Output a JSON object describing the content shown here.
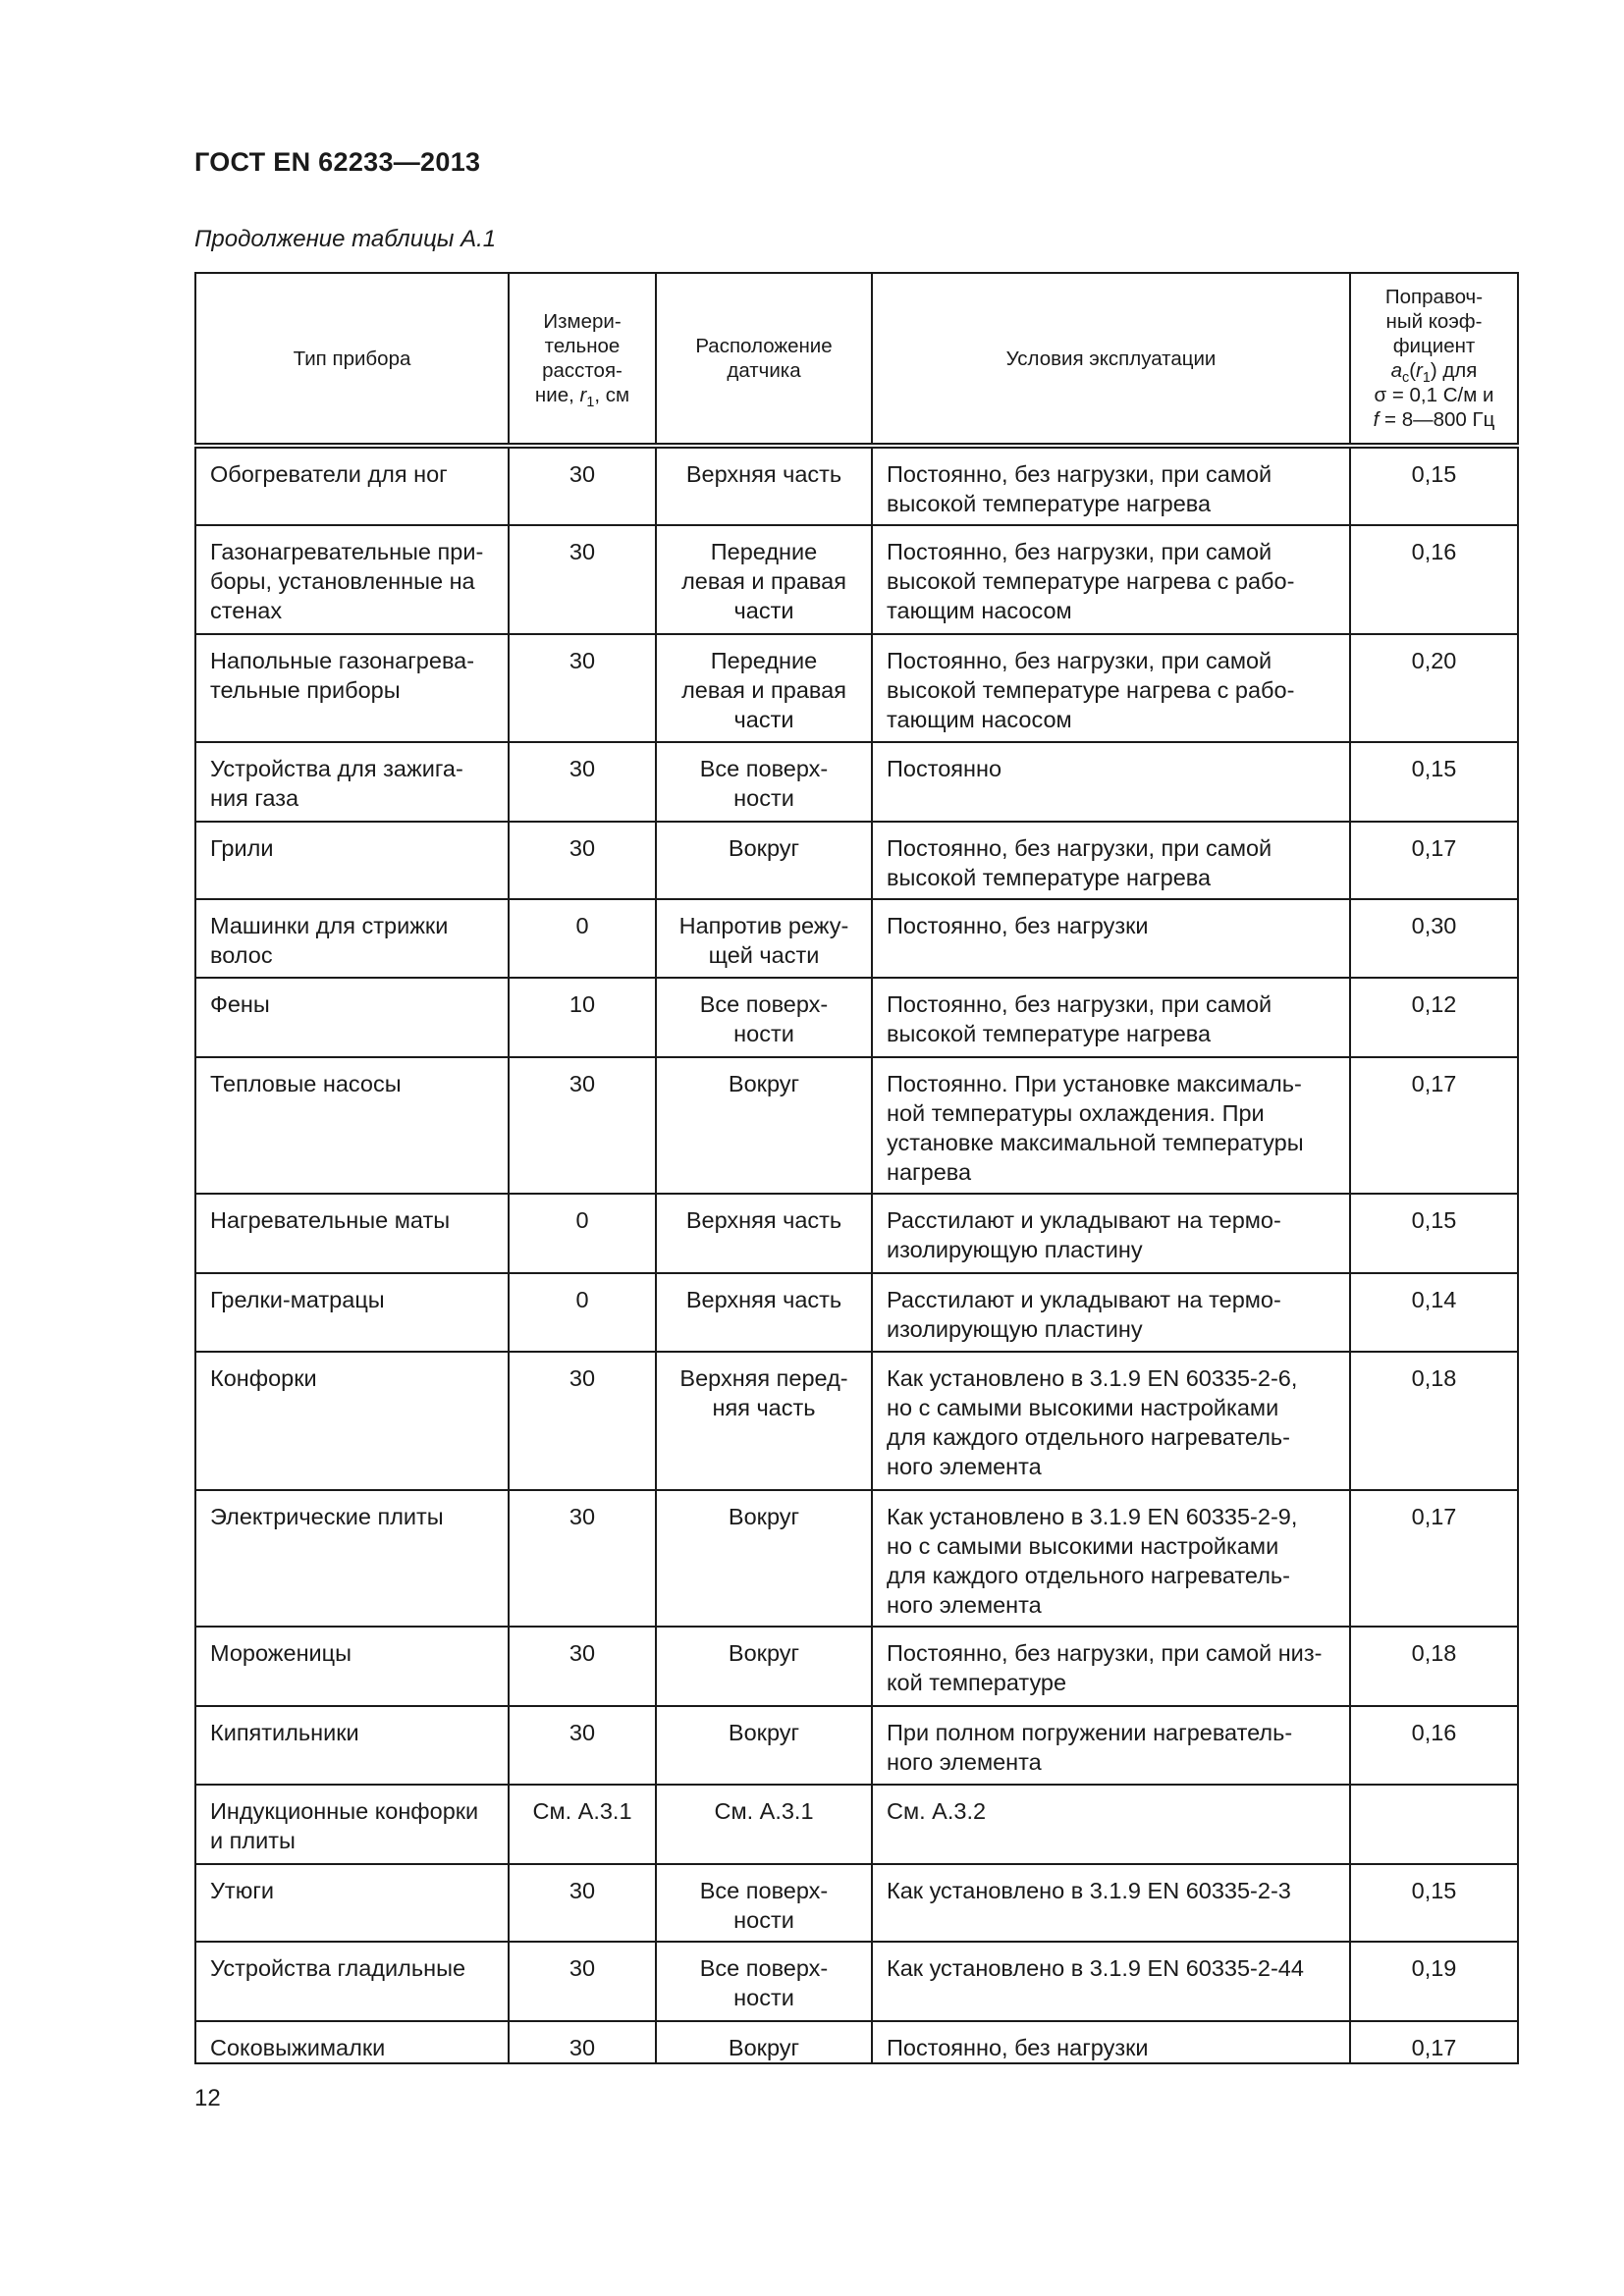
{
  "header": {
    "title": "ГОСТ EN 62233—2013"
  },
  "caption": "Продолжение таблицы А.1",
  "table": {
    "columns": {
      "device_type": "Тип прибора",
      "distance": {
        "pre": "Измери-\nтельное\nрасстоя-\nние, ",
        "var": "r",
        "sub": "1",
        "post": ", см"
      },
      "sensor_location": "Расположение\nдатчика",
      "conditions": "Условия эксплуатации",
      "coefficient": {
        "pre": "Поправоч-\nный коэф-\nфициент\n",
        "var": "a",
        "sub": "c",
        "paren_open": "(",
        "var2": "r",
        "sub2": "1",
        "post": ") для\nσ = 0,1 С/м и\n",
        "fvar": "f",
        "fpost": " = 8—800 Гц"
      }
    },
    "rows": [
      {
        "device": "Обогреватели для ног",
        "distance": "30",
        "location": "Верхняя часть",
        "conditions": "Постоянно, без нагрузки, при самой\nвысокой температуре нагрева",
        "coef": "0,15"
      },
      {
        "device": "Газонагревательные при-\nборы, установленные на\nстенах",
        "distance": "30",
        "location": "Передние\nлевая и правая\nчасти",
        "conditions": "Постоянно, без нагрузки, при самой\nвысокой температуре нагрева с рабо-\nтающим насосом",
        "coef": "0,16"
      },
      {
        "device": "Напольные газонагрева-\nтельные приборы",
        "distance": "30",
        "location": "Передние\nлевая и правая\nчасти",
        "conditions": "Постоянно, без нагрузки, при самой\nвысокой температуре нагрева с рабо-\nтающим насосом",
        "coef": "0,20"
      },
      {
        "device": "Устройства для зажига-\nния газа",
        "distance": "30",
        "location": "Все поверх-\nности",
        "conditions": "Постоянно",
        "coef": "0,15"
      },
      {
        "device": "Грили",
        "distance": "30",
        "location": "Вокруг",
        "conditions": "Постоянно, без нагрузки, при самой\nвысокой температуре нагрева",
        "coef": "0,17"
      },
      {
        "device": "Машинки для стрижки\nволос",
        "distance": "0",
        "location": "Напротив режу-\nщей части",
        "conditions": "Постоянно, без нагрузки",
        "coef": "0,30"
      },
      {
        "device": "Фены",
        "distance": "10",
        "location": "Все поверх-\nности",
        "conditions": "Постоянно, без нагрузки, при самой\nвысокой температуре нагрева",
        "coef": "0,12"
      },
      {
        "device": "Тепловые насосы",
        "distance": "30",
        "location": "Вокруг",
        "conditions": "Постоянно. При установке максималь-\nной температуры охлаждения. При\nустановке максимальной температуры\nнагрева",
        "coef": "0,17"
      },
      {
        "device": "Нагревательные маты",
        "distance": "0",
        "location": "Верхняя часть",
        "conditions": "Расстилают и укладывают на термо-\nизолирующую пластину",
        "coef": "0,15"
      },
      {
        "device": "Грелки-матрацы",
        "distance": "0",
        "location": "Верхняя часть",
        "conditions": "Расстилают и укладывают на термо-\nизолирующую пластину",
        "coef": "0,14"
      },
      {
        "device": "Конфорки",
        "distance": "30",
        "location": "Верхняя перед-\nняя часть",
        "conditions": "Как установлено в 3.1.9 EN 60335-2-6,\nно с самыми высокими настройками\nдля каждого отдельного нагреватель-\nного элемента",
        "coef": "0,18"
      },
      {
        "device": "Электрические плиты",
        "distance": "30",
        "location": "Вокруг",
        "conditions": "Как установлено в 3.1.9 EN 60335-2-9,\nно с  самыми высокими настройками\nдля каждого отдельного нагреватель-\nного элемента",
        "coef": "0,17"
      },
      {
        "device": "Мороженицы",
        "distance": "30",
        "location": "Вокруг",
        "conditions": "Постоянно, без нагрузки, при самой низ-\nкой температуре",
        "coef": "0,18"
      },
      {
        "device": "Кипятильники",
        "distance": "30",
        "location": "Вокруг",
        "conditions": "При полном погружении нагреватель-\nного элемента",
        "coef": "0,16"
      },
      {
        "device": "Индукционные конфорки\nи плиты",
        "distance": "См. А.3.1",
        "location": "См. А.3.1",
        "conditions": "См. А.3.2",
        "coef": ""
      },
      {
        "device": "Утюги",
        "distance": "30",
        "location": "Все поверх-\nности",
        "conditions": "Как установлено в 3.1.9 EN 60335-2-3",
        "coef": "0,15"
      },
      {
        "device": "Устройства гладильные",
        "distance": "30",
        "location": "Все поверх-\nности",
        "conditions": "Как установлено в 3.1.9 EN 60335-2-44",
        "coef": "0,19"
      },
      {
        "device": "Соковыжималки",
        "distance": "30",
        "location": "Вокруг",
        "conditions": "Постоянно, без нагрузки",
        "coef": "0,17"
      }
    ]
  },
  "footer": {
    "page_number": "12"
  }
}
